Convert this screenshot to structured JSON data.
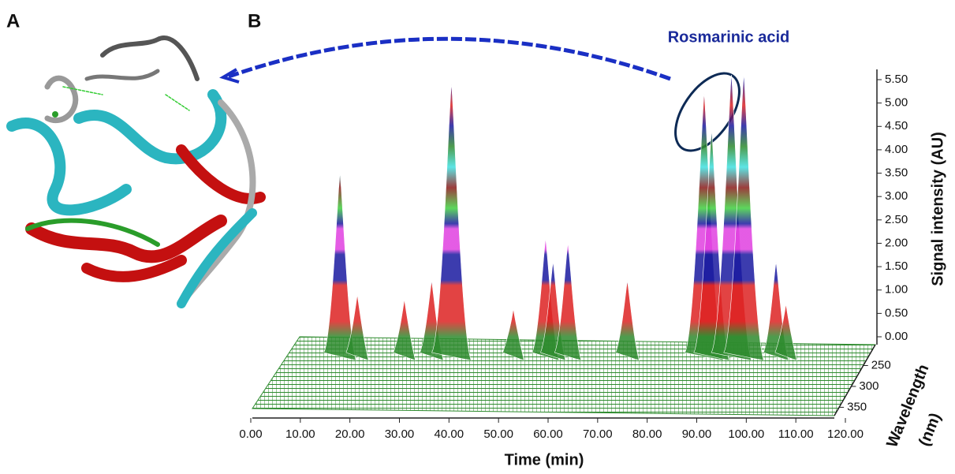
{
  "panel_labels": [
    "A",
    "B"
  ],
  "chart_data": {
    "type": "surface3d",
    "annotation": "Rosmarinic acid",
    "xlabel": "Time (min)",
    "ylabel": "Signal intensity (AU)",
    "zlabel_lines": [
      "Wavelength",
      "(nm)"
    ],
    "xlim": [
      0,
      120
    ],
    "xticks": [
      {
        "value": 0,
        "label": "0.00"
      },
      {
        "value": 10,
        "label": "10.00"
      },
      {
        "value": 20,
        "label": "20.00"
      },
      {
        "value": 30,
        "label": "30.00"
      },
      {
        "value": 40,
        "label": "40.00"
      },
      {
        "value": 50,
        "label": "50.00"
      },
      {
        "value": 60,
        "label": "60.00"
      },
      {
        "value": 70,
        "label": "70.00"
      },
      {
        "value": 80,
        "label": "80.00"
      },
      {
        "value": 90,
        "label": "90.00"
      },
      {
        "value": 100,
        "label": "100.00"
      },
      {
        "value": 110,
        "label": "110.00"
      },
      {
        "value": 120,
        "label": "120.00"
      }
    ],
    "ylim": [
      0,
      5.5
    ],
    "yticks": [
      {
        "value": 0,
        "label": "0.00"
      },
      {
        "value": 0.5,
        "label": "0.50"
      },
      {
        "value": 1,
        "label": "1.00"
      },
      {
        "value": 1.5,
        "label": "1.50"
      },
      {
        "value": 2,
        "label": "2.00"
      },
      {
        "value": 2.5,
        "label": "2.50"
      },
      {
        "value": 3,
        "label": "3.00"
      },
      {
        "value": 3.5,
        "label": "3.50"
      },
      {
        "value": 4,
        "label": "4.00"
      },
      {
        "value": 4.5,
        "label": "4.50"
      },
      {
        "value": 5,
        "label": "5.00"
      },
      {
        "value": 5.5,
        "label": "5.50"
      }
    ],
    "zlim": [
      200,
      370
    ],
    "zticks": [
      250,
      300,
      350
    ],
    "x": [
      18,
      21.5,
      31,
      36.5,
      40.5,
      53,
      59.5,
      61,
      64,
      76,
      91.5,
      93,
      97,
      99.5,
      106,
      108
    ],
    "values": [
      3.5,
      0.9,
      0.8,
      1.2,
      5.4,
      0.6,
      2.1,
      1.6,
      2.0,
      1.2,
      5.2,
      4.4,
      5.6,
      5.6,
      1.6,
      0.7
    ],
    "floor_color": "#2e8b2e"
  }
}
